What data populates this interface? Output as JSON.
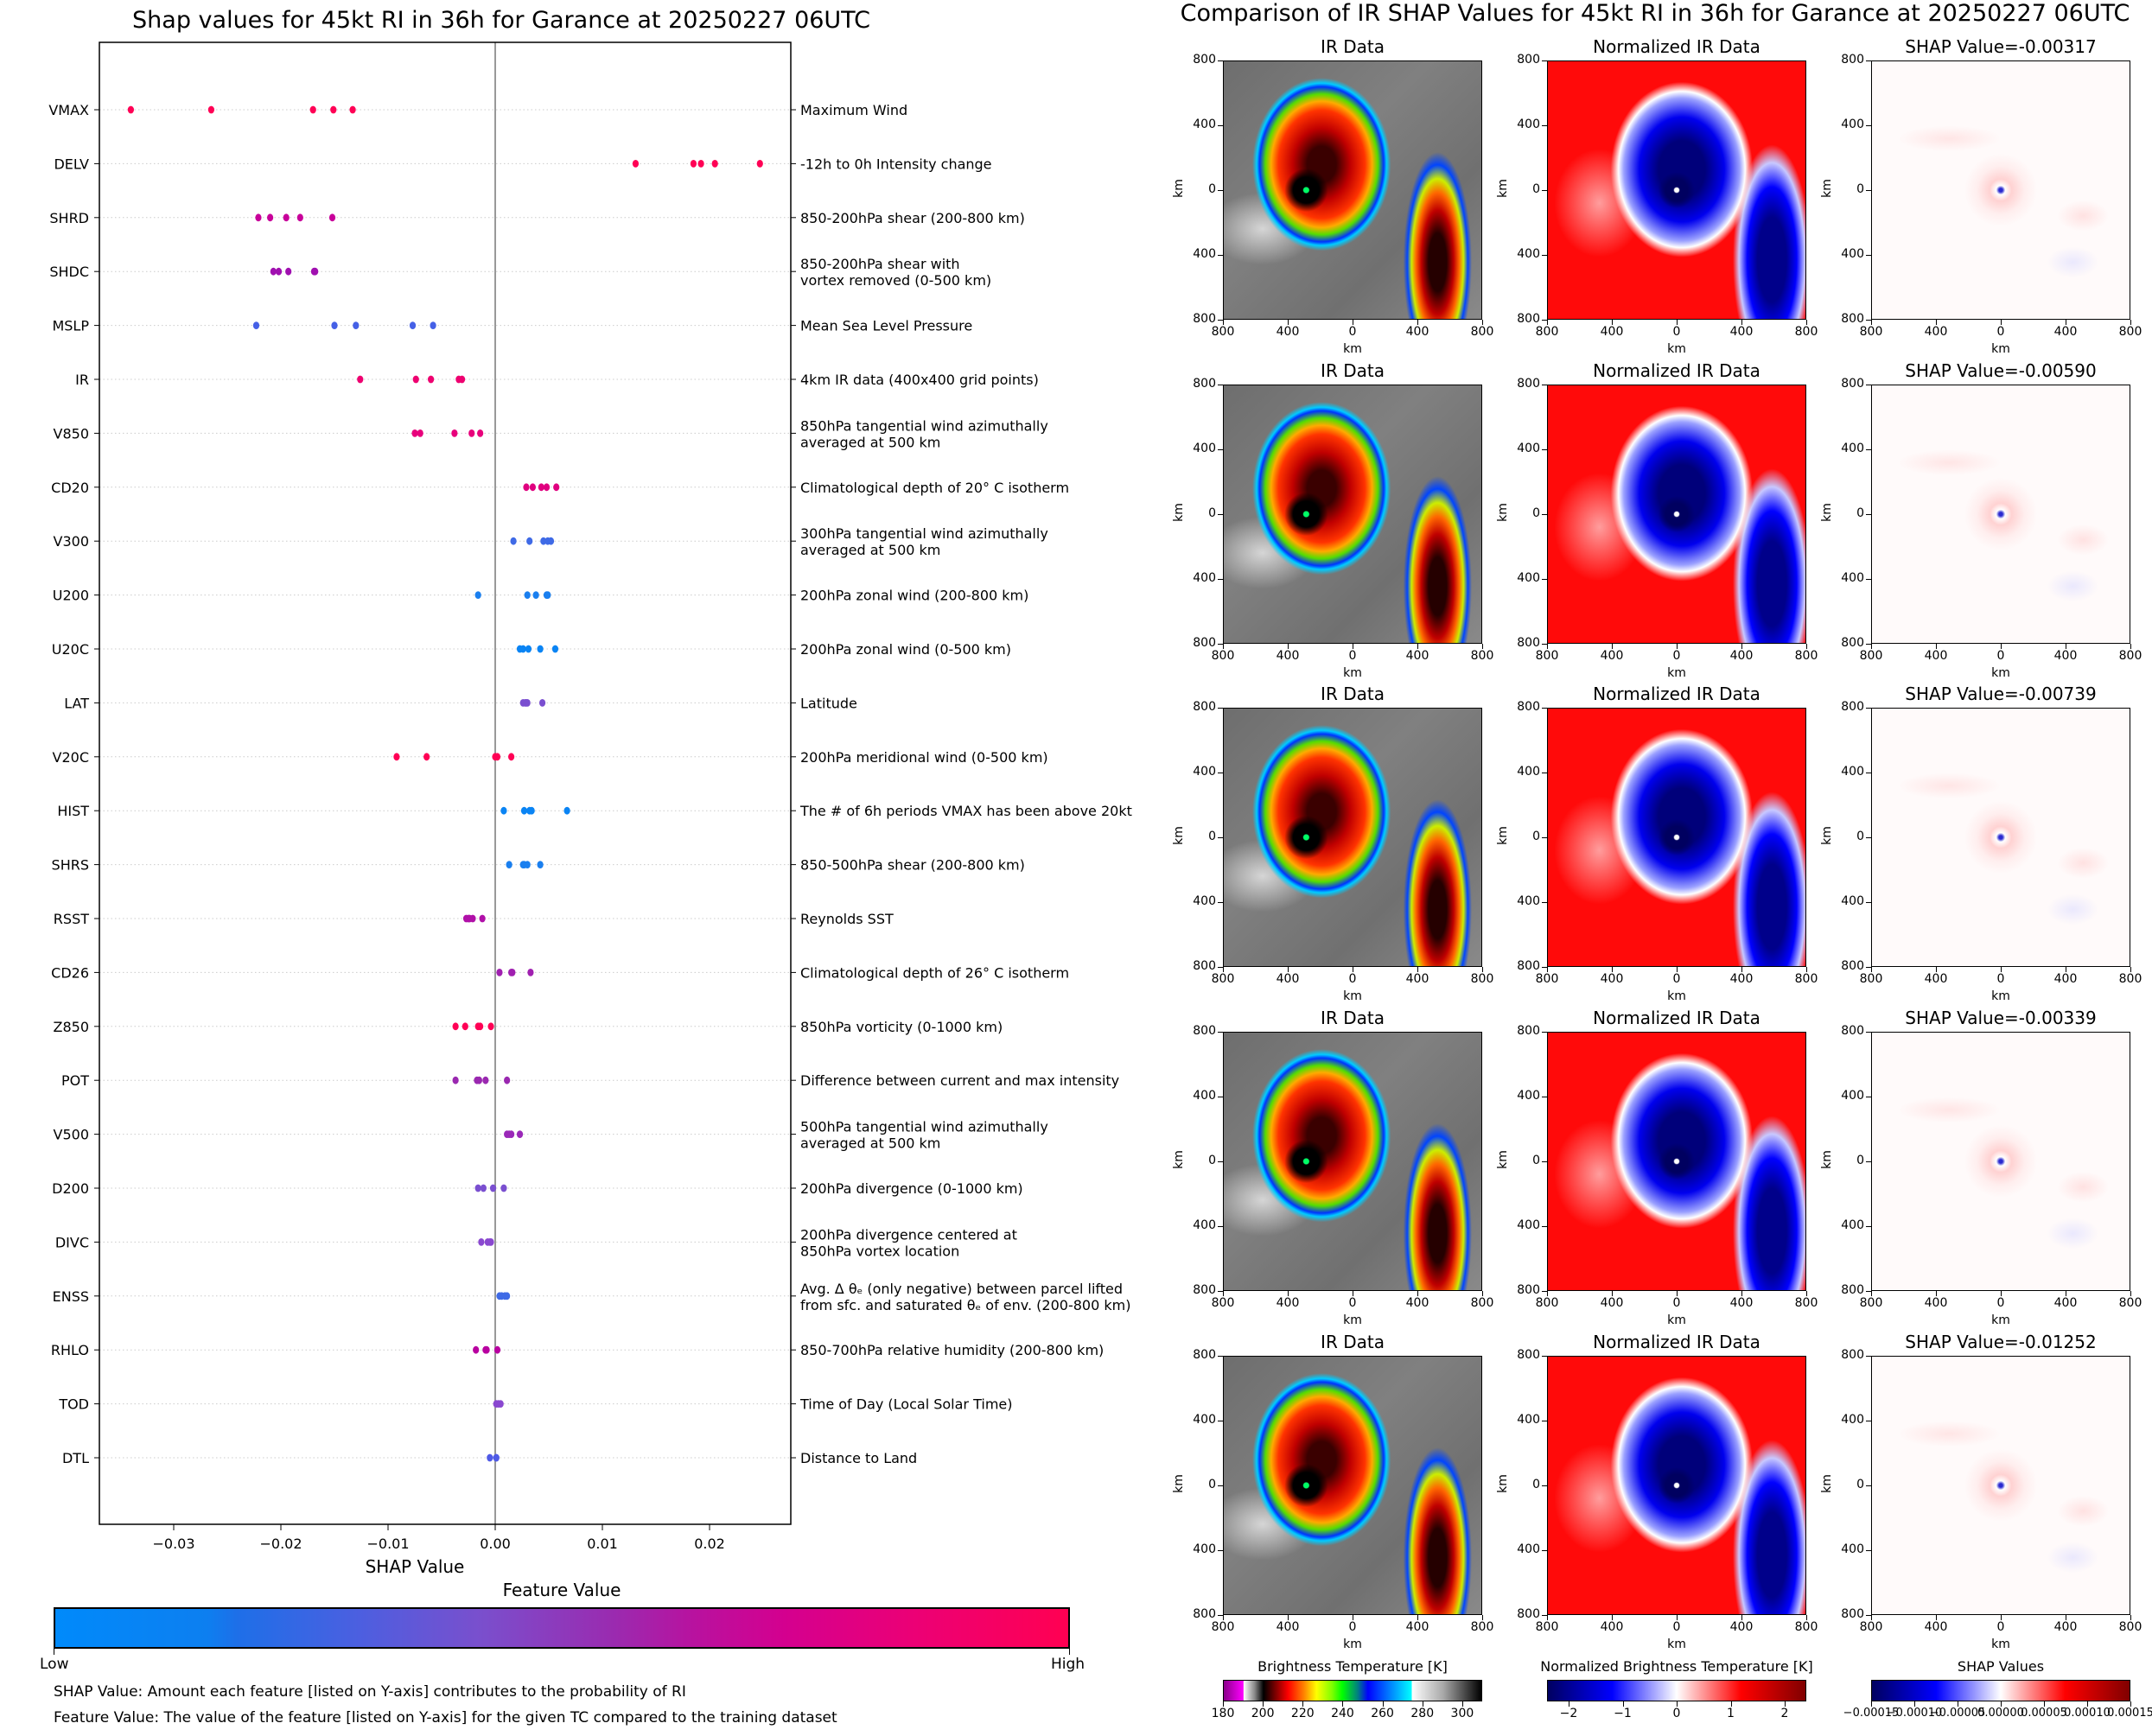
{
  "left_title": "Shap values for 45kt RI in 36h for Garance at 20250227 06UTC",
  "right_title": "Comparison of IR SHAP Values for 45kt RI in 36h for Garance at 20250227 06UTC",
  "chart_data": [
    {
      "type": "scatter",
      "subtype": "beeswarm",
      "title": "Shap values for 45kt RI in 36h for Garance at 20250227 06UTC",
      "xlabel": "SHAP Value",
      "ylabel": "",
      "xlim": [
        -0.0369,
        0.0276
      ],
      "xticks": [
        -0.03,
        -0.02,
        -0.01,
        0.0,
        0.01,
        0.02
      ],
      "xtick_labels": [
        "−0.03",
        "−0.02",
        "−0.01",
        "0.00",
        "0.01",
        "0.02"
      ],
      "zero_line": 0.0,
      "grid": "horizontal dotted",
      "colorbar": {
        "title": "Feature Value",
        "low_label": "Low",
        "high_label": "High",
        "colors": [
          "#008afb",
          "#ff0052"
        ]
      },
      "features": [
        {
          "code": "VMAX",
          "description": "Maximum Wind",
          "color": "#ff0055",
          "values": [
            -0.034,
            -0.0265,
            -0.017,
            -0.0151,
            -0.0133
          ]
        },
        {
          "code": "DELV",
          "description": "-12h to 0h Intensity change",
          "color": "#ff0055",
          "values": [
            0.0131,
            0.0185,
            0.0192,
            0.0205,
            0.0247
          ]
        },
        {
          "code": "SHRD",
          "description": "850-200hPa shear (200-800 km)",
          "color": "#c8009a",
          "values": [
            -0.0221,
            -0.021,
            -0.0195,
            -0.0182,
            -0.0152
          ]
        },
        {
          "code": "SHDC",
          "description": "850-200hPa shear with\nvortex removed (0-500 km)",
          "color": "#a010b0",
          "values": [
            -0.0207,
            -0.0202,
            -0.0193,
            -0.0169,
            -0.0168
          ]
        },
        {
          "code": "MSLP",
          "description": "Mean Sea Level Pressure",
          "color": "#4560e6",
          "values": [
            -0.0223,
            -0.015,
            -0.013,
            -0.0077,
            -0.0058
          ]
        },
        {
          "code": "IR",
          "description": "4km IR data (400x400 grid points)",
          "color": "#ee0070",
          "values": [
            -0.0126,
            -0.0074,
            -0.006,
            -0.0034,
            -0.0031
          ]
        },
        {
          "code": "V850",
          "description": "850hPa tangential wind azimuthally\naveraged at 500 km",
          "color": "#e8007c",
          "values": [
            -0.0075,
            -0.007,
            -0.0038,
            -0.0022,
            -0.0014
          ]
        },
        {
          "code": "CD20",
          "description": "Climatological depth of 20° C isotherm",
          "color": "#e0007f",
          "values": [
            0.0029,
            0.0035,
            0.0043,
            0.0048,
            0.0057
          ]
        },
        {
          "code": "V300",
          "description": "300hPa tangential wind azimuthally\naveraged at 500 km",
          "color": "#3f6ae6",
          "values": [
            0.0017,
            0.0032,
            0.0045,
            0.0049,
            0.0052
          ]
        },
        {
          "code": "U200",
          "description": "200hPa zonal wind (200-800 km)",
          "color": "#1a7fef",
          "values": [
            -0.0016,
            0.003,
            0.0038,
            0.0048,
            0.0049
          ]
        },
        {
          "code": "U20C",
          "description": "200hPa zonal wind (0-500 km)",
          "color": "#0a84f4",
          "values": [
            0.0023,
            0.0026,
            0.0031,
            0.0042,
            0.0056
          ]
        },
        {
          "code": "LAT",
          "description": "Latitude",
          "color": "#7a4fd0",
          "values": [
            0.0026,
            0.0028,
            0.0029,
            0.003,
            0.0044
          ]
        },
        {
          "code": "V20C",
          "description": "200hPa meridional wind (0-500 km)",
          "color": "#ff0055",
          "values": [
            -0.0092,
            -0.0064,
            0.0,
            0.0002,
            0.0015
          ]
        },
        {
          "code": "HIST",
          "description": "The # of 6h periods VMAX has been above 20kt",
          "color": "#0a84f4",
          "values": [
            0.0008,
            0.0027,
            0.0032,
            0.0034,
            0.0067
          ]
        },
        {
          "code": "SHRS",
          "description": "850-500hPa shear (200-800 km)",
          "color": "#1a7fef",
          "values": [
            0.0013,
            0.0026,
            0.0027,
            0.003,
            0.0042
          ]
        },
        {
          "code": "RSST",
          "description": "Reynolds SST",
          "color": "#b010a8",
          "values": [
            -0.0027,
            -0.0025,
            -0.0024,
            -0.0021,
            -0.0012
          ]
        },
        {
          "code": "CD26",
          "description": "Climatological depth of 26° C isotherm",
          "color": "#a020b0",
          "values": [
            0.0004,
            0.0015,
            0.0016,
            0.0033
          ]
        },
        {
          "code": "Z850",
          "description": "850hPa vorticity (0-1000 km)",
          "color": "#ff0055",
          "values": [
            -0.0037,
            -0.0028,
            -0.0016,
            -0.0014,
            -0.0004
          ]
        },
        {
          "code": "POT",
          "description": "Difference between current and max intensity",
          "color": "#9a28b0",
          "values": [
            -0.0037,
            -0.0017,
            -0.0015,
            -0.0009,
            0.0011
          ]
        },
        {
          "code": "V500",
          "description": "500hPa tangential wind azimuthally\naveraged at 500 km",
          "color": "#9a28b8",
          "values": [
            0.0011,
            0.0013,
            0.0015,
            0.0023
          ]
        },
        {
          "code": "D200",
          "description": "200hPa divergence (0-1000 km)",
          "color": "#7a4fd0",
          "values": [
            -0.0016,
            -0.0011,
            -0.0002,
            0.0008
          ]
        },
        {
          "code": "DIVC",
          "description": "200hPa divergence centered at\n850hPa vortex location",
          "color": "#8a48d0",
          "values": [
            -0.0013,
            -0.0007,
            -0.0005,
            -0.0004
          ]
        },
        {
          "code": "ENSS",
          "description": "Avg. Δ θₑ (only negative) between parcel lifted\nfrom sfc. and saturated θₑ of env. (200-800 km)",
          "color": "#3f6ae6",
          "values": [
            0.0004,
            0.0006,
            0.0009,
            0.0011
          ]
        },
        {
          "code": "RHLO",
          "description": "850-700hPa relative humidity (200-800 km)",
          "color": "#b800a0",
          "values": [
            -0.0018,
            -0.0009,
            -0.0008,
            0.0002
          ]
        },
        {
          "code": "TOD",
          "description": "Time of Day (Local Solar Time)",
          "color": "#8a48d0",
          "values": [
            0.0001,
            0.0003,
            0.0005
          ]
        },
        {
          "code": "DTL",
          "description": "Distance to Land",
          "color": "#4f5ae6",
          "values": [
            -0.0005,
            0.0001,
            0.0001
          ]
        }
      ]
    },
    {
      "type": "heatmap",
      "title": "Comparison of IR SHAP Values for 45kt RI in 36h for Garance at 20250227 06UTC",
      "columns": [
        "IR Data",
        "Normalized IR Data",
        "SHAP Value"
      ],
      "xlabel": "km",
      "ylabel": "km",
      "axis_ticks": [
        "800",
        "400",
        "0",
        "400",
        "800"
      ],
      "rows": [
        {
          "ir_title": "IR Data",
          "nir_title": "Normalized IR Data",
          "shap_title": "SHAP Value=-0.00317",
          "shap_value": -0.00317
        },
        {
          "ir_title": "IR Data",
          "nir_title": "Normalized IR Data",
          "shap_title": "SHAP Value=-0.00590",
          "shap_value": -0.0059
        },
        {
          "ir_title": "IR Data",
          "nir_title": "Normalized IR Data",
          "shap_title": "SHAP Value=-0.00739",
          "shap_value": -0.00739
        },
        {
          "ir_title": "IR Data",
          "nir_title": "Normalized IR Data",
          "shap_title": "SHAP Value=-0.00339",
          "shap_value": -0.00339
        },
        {
          "ir_title": "IR Data",
          "nir_title": "Normalized IR Data",
          "shap_title": "SHAP Value=-0.01252",
          "shap_value": -0.01252
        }
      ],
      "colorbars": [
        {
          "title": "Brightness Temperature [K]",
          "range": [
            180,
            310
          ],
          "ticks": [
            "180",
            "200",
            "220",
            "240",
            "260",
            "280",
            "300"
          ]
        },
        {
          "title": "Normalized Brightness Temperature [K]",
          "range": [
            -2.4,
            2.4
          ],
          "ticks": [
            "−2",
            "−1",
            "0",
            "1",
            "2"
          ]
        },
        {
          "title": "SHAP Values",
          "range": [
            -0.00015,
            0.00015
          ],
          "ticks": [
            "−0.00015",
            "−0.00010",
            "−0.00005",
            "0.00000",
            "0.00005",
            "0.00010",
            "0.00015"
          ]
        }
      ]
    }
  ],
  "colorbar_feature": {
    "title": "Feature Value",
    "low": "Low",
    "high": "High"
  },
  "notes": [
    "SHAP Value: Amount each feature [listed on Y-axis] contributes to the probability of RI",
    "Feature Value: The value of the feature [listed on Y-axis] for the given TC compared to the training dataset"
  ]
}
